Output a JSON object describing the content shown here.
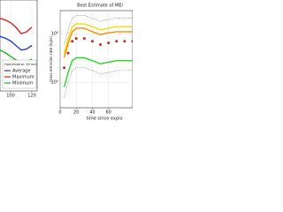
{
  "chart_data": [
    {
      "type": "line",
      "legend_title": "Half-lifetime: 30 min",
      "x": [
        90,
        95,
        100,
        105,
        110,
        115,
        120
      ],
      "xlim": [
        90,
        125
      ],
      "xticks": [
        100,
        120
      ],
      "ylim": [
        0,
        10
      ],
      "grid": true,
      "series": [
        {
          "name": "Average",
          "color": "#1f3fe0",
          "values": [
            6,
            5.8,
            5.5,
            5,
            4.5,
            4.6,
            5
          ]
        },
        {
          "name": "Maximum",
          "color": "#e02020",
          "values": [
            8,
            7.8,
            7.5,
            7,
            6.3,
            6.5,
            7
          ]
        },
        {
          "name": "Minimum",
          "color": "#20b020",
          "values": [
            4.5,
            4.2,
            3.8,
            3.4,
            3,
            3.2,
            3.5
          ]
        }
      ]
    },
    {
      "type": "line",
      "title": "Best Estimate of MEI",
      "ylabel": "mass emission rate (kg/s)",
      "xlabel": "time since explo",
      "x": [
        5,
        10,
        15,
        20,
        30,
        40,
        50,
        60,
        70,
        80,
        90
      ],
      "xlim": [
        0,
        90
      ],
      "xticks": [
        0,
        20,
        40,
        60
      ],
      "log_y": true,
      "grid": true,
      "ylim": [
        30000,
        3000000
      ],
      "yticks": [
        {
          "value": 100000,
          "label": "10⁵"
        },
        {
          "value": 1000000,
          "label": "10⁶"
        }
      ],
      "series": [
        {
          "color": "#888888",
          "dash": true,
          "values": [
            600000,
            1200000,
            2100000,
            2400000,
            2400000,
            2100000,
            1800000,
            1950000,
            2100000,
            2100000,
            2100000
          ]
        },
        {
          "color": "#ffd800",
          "values": [
            400000,
            800000,
            1400000,
            1600000,
            1600000,
            1400000,
            1200000,
            1300000,
            1400000,
            1400000,
            1400000
          ]
        },
        {
          "color": "#ff8c00",
          "values": [
            320000,
            640000,
            1100000,
            1300000,
            1300000,
            1100000,
            960000,
            1050000,
            1100000,
            1100000,
            1100000
          ]
        },
        {
          "color": "#e01010",
          "marker": true,
          "values": [
            200000,
            400000,
            700000,
            800000,
            800000,
            700000,
            600000,
            650000,
            700000,
            700000,
            700000
          ]
        },
        {
          "color": "#22dd22",
          "values": [
            80000,
            160000,
            280000,
            320000,
            320000,
            280000,
            240000,
            260000,
            280000,
            280000,
            280000
          ]
        },
        {
          "color": "#888888",
          "dash": true,
          "values": [
            50000,
            100000,
            175000,
            200000,
            200000,
            175000,
            150000,
            160000,
            175000,
            175000,
            175000
          ]
        }
      ]
    }
  ]
}
